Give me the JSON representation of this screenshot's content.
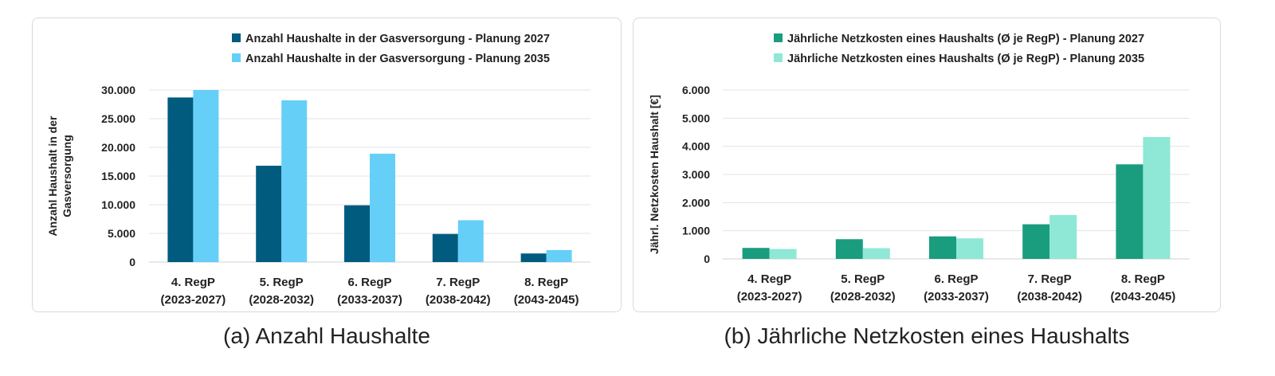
{
  "captions": {
    "a": "(a) Anzahl Haushalte",
    "b": "(b) Jährliche Netzkosten eines Haushalts"
  },
  "chart_data": [
    {
      "type": "bar",
      "categories": [
        [
          "4. RegP",
          "(2023-2027)"
        ],
        [
          "5. RegP",
          "(2028-2032)"
        ],
        [
          "6. RegP",
          "(2033-2037)"
        ],
        [
          "7. RegP",
          "(2038-2042)"
        ],
        [
          "8. RegP",
          "(2043-2045)"
        ]
      ],
      "series": [
        {
          "name": "Anzahl Haushalte in der Gasversorgung - Planung 2027",
          "color": "#005B7F",
          "values": [
            28700,
            16800,
            9900,
            4900,
            1500
          ]
        },
        {
          "name": "Anzahl Haushalte in der Gasversorgung - Planung 2035",
          "color": "#66CFF7",
          "values": [
            30000,
            28200,
            18900,
            7300,
            2100
          ]
        }
      ],
      "yticks": [
        "0",
        "5.000",
        "10.000",
        "15.000",
        "20.000",
        "25.000",
        "30.000"
      ],
      "ylabel": [
        "Anzahl Haushalt in der",
        "Gasversorgung"
      ],
      "ylim": [
        0,
        30000
      ],
      "ystep": 5000,
      "legend": "top-right",
      "grid": true
    },
    {
      "type": "bar",
      "categories": [
        [
          "4. RegP",
          "(2023-2027)"
        ],
        [
          "5. RegP",
          "(2028-2032)"
        ],
        [
          "6. RegP",
          "(2033-2037)"
        ],
        [
          "7. RegP",
          "(2038-2042)"
        ],
        [
          "8. RegP",
          "(2043-2045)"
        ]
      ],
      "series": [
        {
          "name": "Jährliche Netzkosten eines Haushalts (Ø je RegP) - Planung 2027",
          "color": "#1A9C7E",
          "values": [
            390,
            700,
            800,
            1230,
            3360
          ]
        },
        {
          "name": "Jährliche Netzkosten eines Haushalts (Ø je RegP) - Planung 2035",
          "color": "#8EE8D5",
          "values": [
            350,
            380,
            730,
            1560,
            4330
          ]
        }
      ],
      "yticks": [
        "0",
        "1.000",
        "2.000",
        "3.000",
        "4.000",
        "5.000",
        "6.000"
      ],
      "ylabel": [
        "Jährl. Netzkosten Haushalt [€]"
      ],
      "ylim": [
        0,
        6000
      ],
      "ystep": 1000,
      "legend": "top-right",
      "grid": true
    }
  ]
}
